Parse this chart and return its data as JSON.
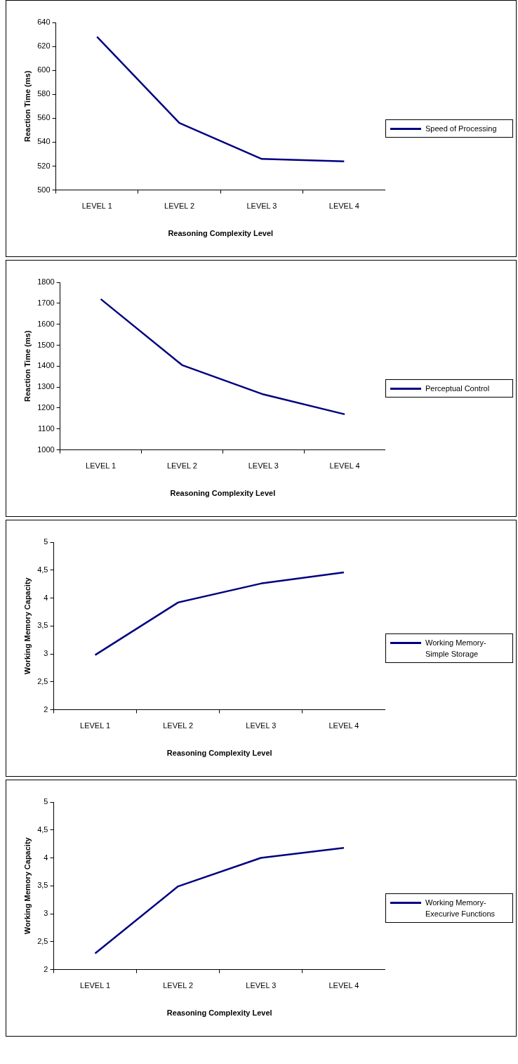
{
  "chart_data": [
    {
      "type": "line",
      "xlabel": "Reasoning Complexity Level",
      "ylabel": "Reaction Time (ms)",
      "categories": [
        "LEVEL 1",
        "LEVEL 2",
        "LEVEL 3",
        "LEVEL 4"
      ],
      "series": [
        {
          "name": "Speed of Processing",
          "color": "#000080",
          "values": [
            628,
            556,
            526,
            524
          ]
        }
      ],
      "ylim": [
        500,
        640
      ],
      "yticks": [
        500,
        520,
        540,
        560,
        580,
        600,
        620,
        640
      ],
      "grid": false,
      "legend": "right",
      "marker": "none",
      "line_style": "solid"
    },
    {
      "type": "line",
      "xlabel": "Reasoning Complexity Level",
      "ylabel": "Reaction Time (ms)",
      "categories": [
        "LEVEL 1",
        "LEVEL 2",
        "LEVEL 3",
        "LEVEL 4"
      ],
      "series": [
        {
          "name": "Perceptual Control",
          "color": "#000080",
          "values": [
            1720,
            1405,
            1265,
            1170
          ]
        }
      ],
      "ylim": [
        1000,
        1800
      ],
      "yticks": [
        1000,
        1100,
        1200,
        1300,
        1400,
        1500,
        1600,
        1700,
        1800
      ],
      "grid": false,
      "legend": "right",
      "marker": "none",
      "line_style": "solid"
    },
    {
      "type": "line",
      "xlabel": "Reasoning Complexity Level",
      "ylabel": "Working Memory Capacity",
      "categories": [
        "LEVEL 1",
        "LEVEL 2",
        "LEVEL 3",
        "LEVEL 4"
      ],
      "series": [
        {
          "name": "Working Memory-Simple Storage",
          "color": "#000080",
          "values": [
            2.98,
            3.92,
            4.26,
            4.46
          ]
        }
      ],
      "ylim": [
        2,
        5
      ],
      "yticks": [
        2,
        {
          "value": 2.5,
          "label": "2,5"
        },
        3,
        {
          "value": 3.5,
          "label": "3,5"
        },
        4,
        {
          "value": 4.5,
          "label": "4,5"
        },
        5
      ],
      "grid": false,
      "legend": "right",
      "marker": "none",
      "line_style": "solid"
    },
    {
      "type": "line",
      "xlabel": "Reasoning Complexity Level",
      "ylabel": "Working Memory Capacity",
      "categories": [
        "LEVEL 1",
        "LEVEL 2",
        "LEVEL 3",
        "LEVEL 4"
      ],
      "series": [
        {
          "name": "Working Memory-Execurive Functions",
          "color": "#000080",
          "values": [
            2.29,
            3.49,
            4.0,
            4.18
          ]
        }
      ],
      "ylim": [
        2,
        5
      ],
      "yticks": [
        2,
        {
          "value": 2.5,
          "label": "2,5"
        },
        3,
        {
          "value": 3.5,
          "label": "3,5"
        },
        4,
        {
          "value": 4.5,
          "label": "4,5"
        },
        5
      ],
      "grid": false,
      "legend": "right",
      "marker": "none",
      "line_style": "solid"
    }
  ]
}
